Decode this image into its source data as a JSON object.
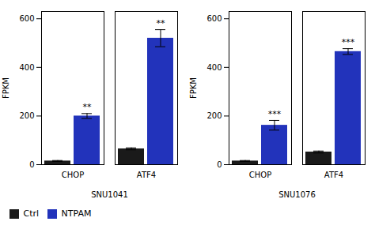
{
  "chart_data": [
    {
      "type": "bar",
      "xlabel": "SNU1041",
      "ylabel": "FPKM",
      "categories": [
        "CHOP",
        "ATF4"
      ],
      "series": [
        {
          "name": "Ctrl",
          "color": "#1a1a1a",
          "values": [
            15,
            65
          ],
          "errors": [
            2,
            4
          ]
        },
        {
          "name": "NTPAM",
          "color": "#2233bb",
          "values": [
            200,
            520
          ],
          "errors": [
            10,
            35
          ],
          "significance": [
            "**",
            "**"
          ]
        }
      ],
      "ylim": [
        0,
        630
      ],
      "yticks": [
        0,
        200,
        400,
        600
      ],
      "legend": "lower left"
    },
    {
      "type": "bar",
      "xlabel": "SNU1076",
      "ylabel": "FPKM",
      "categories": [
        "CHOP",
        "ATF4"
      ],
      "series": [
        {
          "name": "Ctrl",
          "color": "#1a1a1a",
          "values": [
            15,
            52
          ],
          "errors": [
            2,
            4
          ]
        },
        {
          "name": "NTPAM",
          "color": "#2233bb",
          "values": [
            162,
            465
          ],
          "errors": [
            20,
            12
          ],
          "significance": [
            "***",
            "***"
          ]
        }
      ],
      "ylim": [
        0,
        630
      ],
      "yticks": [
        0,
        200,
        400,
        600
      ],
      "legend": "lower left"
    }
  ]
}
